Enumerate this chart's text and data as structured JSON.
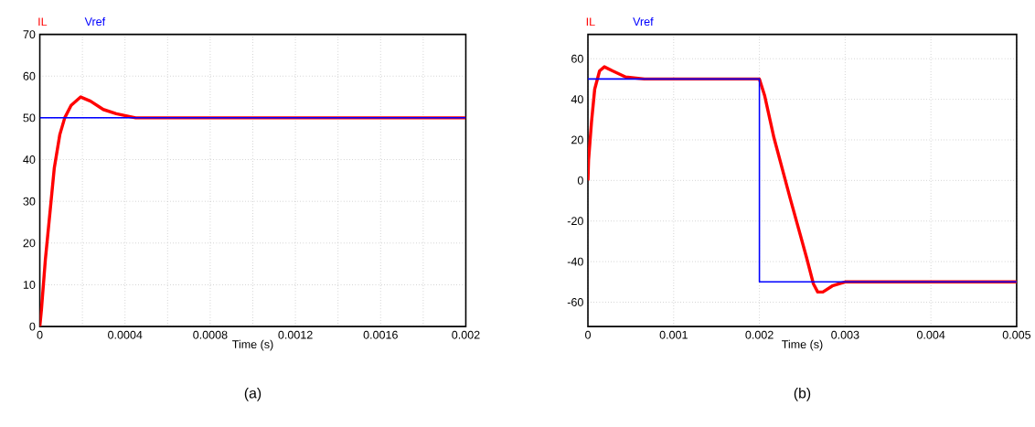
{
  "chart_data": [
    {
      "type": "line",
      "xlabel": "Time (s)",
      "xlim": [
        0,
        0.002
      ],
      "ylim": [
        0,
        70
      ],
      "xticks": [
        0,
        {
          "value": 0.0002,
          "label": null
        },
        0.0004,
        {
          "value": 0.0006,
          "label": null
        },
        0.0008,
        {
          "value": 0.001,
          "label": null
        },
        0.0012,
        {
          "value": 0.0014,
          "label": null
        },
        0.0016,
        {
          "value": 0.0018,
          "label": null
        },
        0.002
      ],
      "yticks": [
        0,
        10,
        20,
        30,
        40,
        50,
        60,
        70
      ],
      "grid": true,
      "marker": "none",
      "line_style": "solid",
      "annotations": [
        "(a)"
      ],
      "series": [
        {
          "name": "IL",
          "color": "#ff0000",
          "x": [
            0,
            7.6e-06,
            2.6e-05,
            4.9e-05,
            6.8e-05,
            9.4e-05,
            0.000117,
            0.000147,
            0.000192,
            0.000238,
            0.000298,
            0.000359,
            0.00045,
            0.002
          ],
          "values": [
            0,
            4,
            16,
            28,
            38,
            46,
            50,
            53,
            55,
            54,
            52,
            51,
            50,
            50
          ]
        },
        {
          "name": "Vref",
          "color": "#0000ff",
          "x": [
            0,
            0.002
          ],
          "values": [
            50,
            50
          ]
        }
      ]
    },
    {
      "type": "line",
      "xlabel": "Time (s)",
      "xlim": [
        0,
        0.005
      ],
      "ylim": [
        -72,
        72
      ],
      "xticks": [
        0,
        0.001,
        0.002,
        0.003,
        0.004,
        0.005
      ],
      "yticks": [
        -60,
        -40,
        -20,
        0,
        20,
        40,
        60
      ],
      "grid": true,
      "marker": "none",
      "line_style": "solid",
      "annotations": [
        "(b)"
      ],
      "series": [
        {
          "name": "IL",
          "color": "#ff0000",
          "x": [
            0,
            7.5e-06,
            4.2e-05,
            7.9e-05,
            0.000136,
            0.000192,
            0.000287,
            0.00044,
            0.00066,
            0.002,
            0.00206,
            0.00217,
            0.00236,
            0.00255,
            0.00263,
            0.00268,
            0.00274,
            0.00285,
            0.003,
            0.005
          ],
          "values": [
            0,
            10,
            29,
            45,
            54,
            56,
            54,
            51,
            50,
            50,
            42,
            21,
            -9,
            -38,
            -51,
            -55,
            -55,
            -52,
            -50,
            -50
          ]
        },
        {
          "name": "Vref",
          "color": "#0000ff",
          "x": [
            0,
            0.002,
            0.002,
            0.005
          ],
          "values": [
            50,
            50,
            -50,
            -50
          ]
        }
      ]
    }
  ]
}
